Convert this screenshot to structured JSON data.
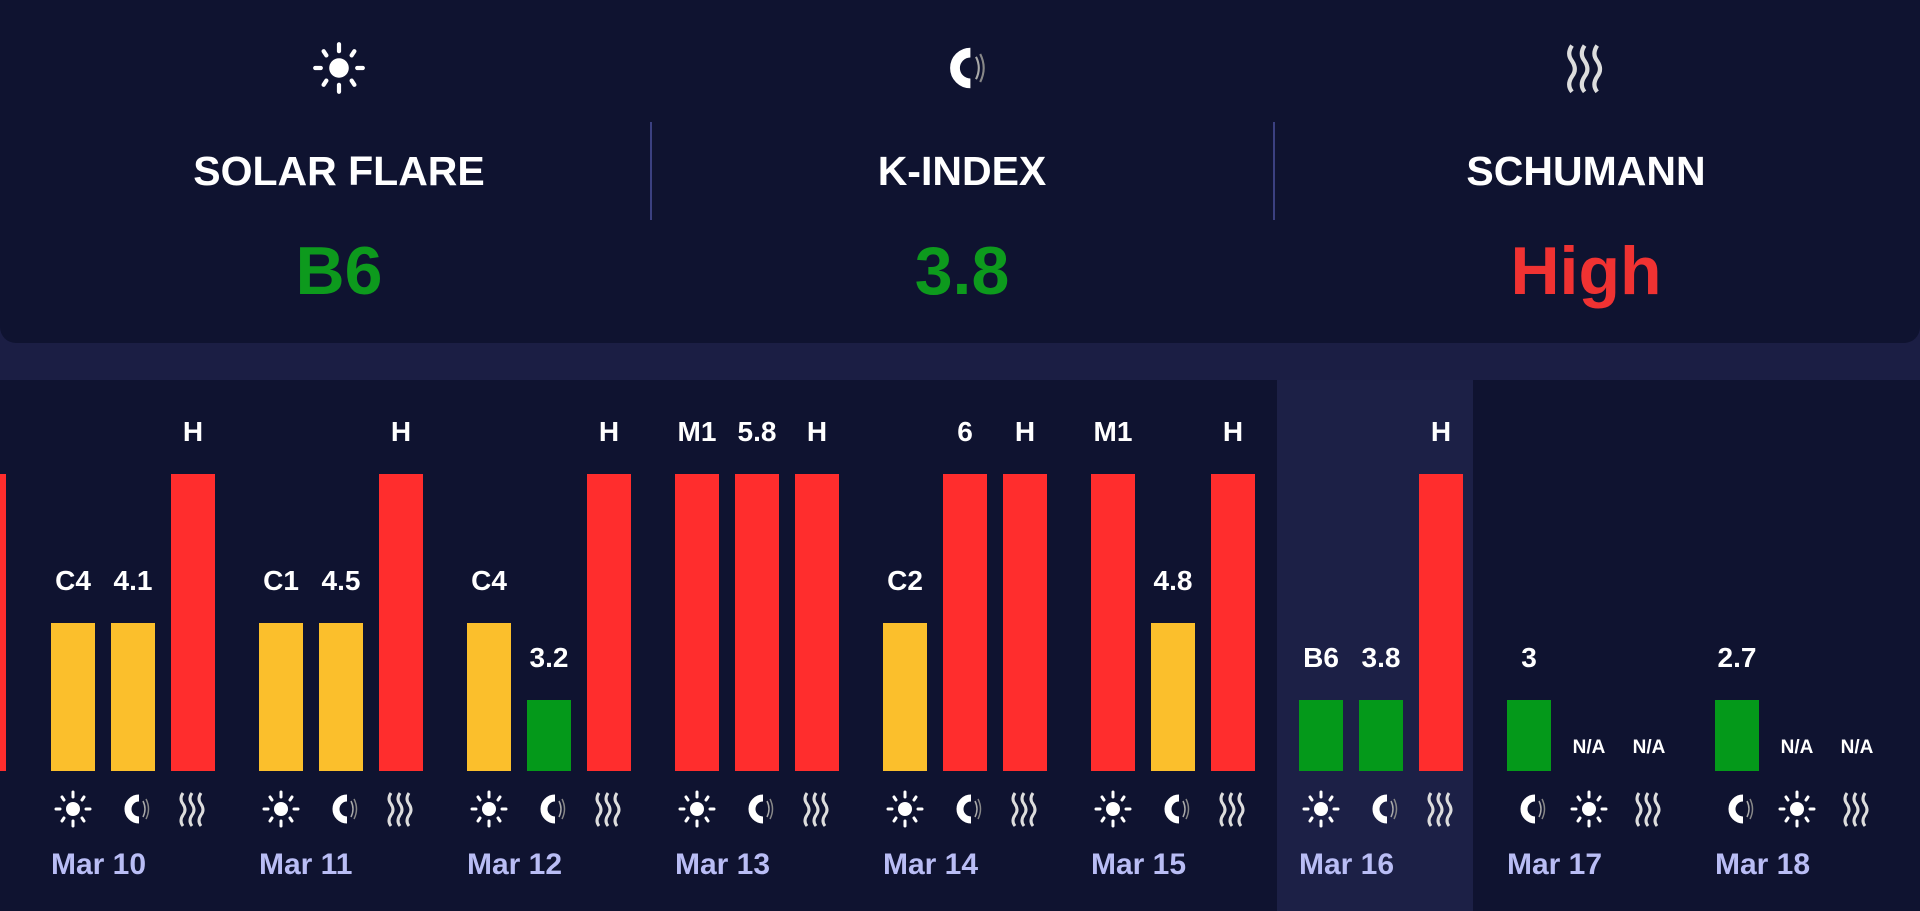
{
  "current": [
    {
      "icon": "sun-icon",
      "title": "SOLAR FLARE",
      "value": "B6",
      "color": "#0d9a1d"
    },
    {
      "icon": "magnet-icon",
      "title": "K-INDEX",
      "value": "3.8",
      "color": "#0d9a1d"
    },
    {
      "icon": "waves-icon",
      "title": "SCHUMANN",
      "value": "High",
      "color": "#f03232"
    }
  ],
  "colors": {
    "high": "#ff2d2d",
    "medium": "#fbbf2c",
    "low": "#04991a"
  },
  "levels": {
    "high": 1.0,
    "medium": 0.5,
    "low": 0.24,
    "none": 0
  },
  "days": [
    {
      "date": "Mar 10",
      "bars": [
        {
          "type": "solar",
          "label": "C4",
          "level": "medium"
        },
        {
          "type": "kindex",
          "label": "4.1",
          "level": "medium"
        },
        {
          "type": "schumann",
          "label": "H",
          "level": "high"
        }
      ]
    },
    {
      "date": "Mar 11",
      "bars": [
        {
          "type": "solar",
          "label": "C1",
          "level": "medium"
        },
        {
          "type": "kindex",
          "label": "4.5",
          "level": "medium"
        },
        {
          "type": "schumann",
          "label": "H",
          "level": "high"
        }
      ]
    },
    {
      "date": "Mar 12",
      "bars": [
        {
          "type": "solar",
          "label": "C4",
          "level": "medium"
        },
        {
          "type": "kindex",
          "label": "3.2",
          "level": "low"
        },
        {
          "type": "schumann",
          "label": "H",
          "level": "high"
        }
      ]
    },
    {
      "date": "Mar 13",
      "bars": [
        {
          "type": "solar",
          "label": "M1",
          "level": "high"
        },
        {
          "type": "kindex",
          "label": "5.8",
          "level": "high"
        },
        {
          "type": "schumann",
          "label": "H",
          "level": "high"
        }
      ]
    },
    {
      "date": "Mar 14",
      "bars": [
        {
          "type": "solar",
          "label": "C2",
          "level": "medium"
        },
        {
          "type": "kindex",
          "label": "6",
          "level": "high"
        },
        {
          "type": "schumann",
          "label": "H",
          "level": "high"
        }
      ]
    },
    {
      "date": "Mar 15",
      "bars": [
        {
          "type": "solar",
          "label": "M1",
          "level": "high"
        },
        {
          "type": "kindex",
          "label": "4.8",
          "level": "medium"
        },
        {
          "type": "schumann",
          "label": "H",
          "level": "high"
        }
      ]
    },
    {
      "date": "Mar 16",
      "today": true,
      "bars": [
        {
          "type": "solar",
          "label": "B6",
          "level": "low"
        },
        {
          "type": "kindex",
          "label": "3.8",
          "level": "low"
        },
        {
          "type": "schumann",
          "label": "H",
          "level": "high"
        }
      ]
    },
    {
      "date": "Mar 17",
      "bars": [
        {
          "type": "kindex",
          "label": "3",
          "level": "low"
        },
        {
          "type": "solar",
          "label": "N/A",
          "level": "none"
        },
        {
          "type": "schumann",
          "label": "N/A",
          "level": "none"
        }
      ]
    },
    {
      "date": "Mar 18",
      "bars": [
        {
          "type": "kindex",
          "label": "2.7",
          "level": "low"
        },
        {
          "type": "solar",
          "label": "N/A",
          "level": "none"
        },
        {
          "type": "schumann",
          "label": "N/A",
          "level": "none"
        }
      ]
    }
  ]
}
